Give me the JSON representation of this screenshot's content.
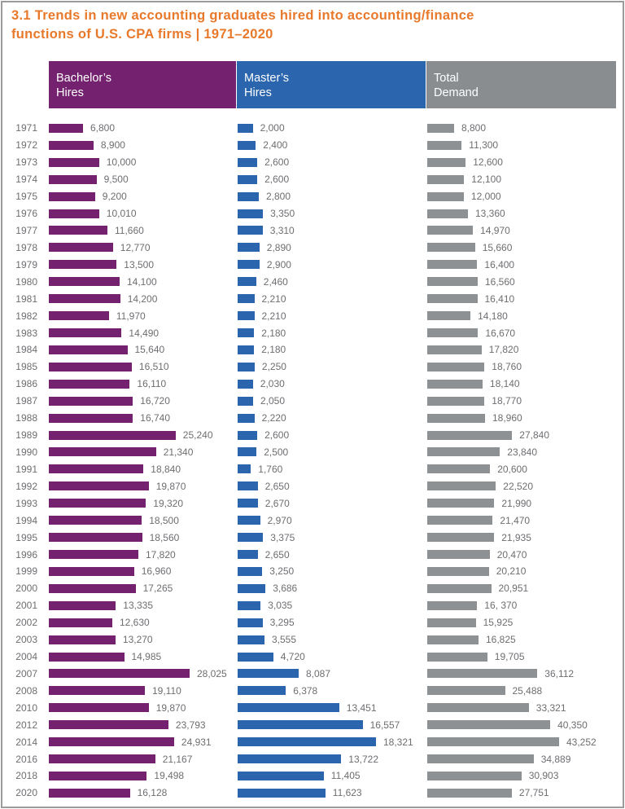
{
  "title": {
    "line1": "3.1 Trends in new accounting graduates hired into accounting/finance",
    "line2": "functions of U.S. CPA firms | 1971–2020"
  },
  "colors": {
    "title_orange": "#e8792b",
    "bachelor_purple": "#74216f",
    "master_blue": "#2a65ae",
    "header_gray": "#8a8d90",
    "bar_gray": "#8e9194",
    "text_gray": "#6d6e71",
    "page_border": "#9b9b9b"
  },
  "columns": [
    {
      "id": "bachelors",
      "label_line1": "Bachelor’s",
      "label_line2": "Hires",
      "color": "#74216f"
    },
    {
      "id": "masters",
      "label_line1": "Master’s",
      "label_line2": "Hires",
      "color": "#2a65ae"
    },
    {
      "id": "total",
      "label_line1": "Total",
      "label_line2": "Demand",
      "color": "#8e9194"
    }
  ],
  "chart_data": {
    "type": "bar",
    "orientation": "horizontal",
    "title": "3.1 Trends in new accounting graduates hired into accounting/finance functions of U.S. CPA firms | 1971–2020",
    "legend_position": "top",
    "grid": false,
    "categories": [
      "1971",
      "1972",
      "1973",
      "1974",
      "1975",
      "1976",
      "1977",
      "1978",
      "1979",
      "1980",
      "1981",
      "1982",
      "1983",
      "1984",
      "1985",
      "1986",
      "1987",
      "1988",
      "1989",
      "1990",
      "1991",
      "1992",
      "1993",
      "1994",
      "1995",
      "1996",
      "1999",
      "2000",
      "2001",
      "2002",
      "2003",
      "2004",
      "2007",
      "2008",
      "2010",
      "2012",
      "2014",
      "2016",
      "2018",
      "2020"
    ],
    "series": [
      {
        "name": "Bachelor's Hires",
        "color": "#74216f",
        "values": [
          6800,
          8900,
          10000,
          9500,
          9200,
          10010,
          11660,
          12770,
          13500,
          14100,
          14200,
          11970,
          14490,
          15640,
          16510,
          16110,
          16720,
          16740,
          25240,
          21340,
          18840,
          19870,
          19320,
          18500,
          18560,
          17820,
          16960,
          17265,
          13335,
          12630,
          13270,
          14985,
          28025,
          19110,
          19870,
          23793,
          24931,
          21167,
          19498,
          16128
        ],
        "labels": [
          "6,800",
          "8,900",
          "10,000",
          "9,500",
          "9,200",
          "10,010",
          "11,660",
          "12,770",
          "13,500",
          "14,100",
          "14,200",
          "11,970",
          "14,490",
          "15,640",
          "16,510",
          "16,110",
          "16,720",
          "16,740",
          "25,240",
          "21,340",
          "18,840",
          "19,870",
          "19,320",
          "18,500",
          "18,560",
          "17,820",
          "16,960",
          "17,265",
          "13,335",
          "12,630",
          "13,270",
          "14,985",
          "28,025",
          "19,110",
          "19,870",
          "23,793",
          "24,931",
          "21,167",
          "19,498",
          "16,128"
        ]
      },
      {
        "name": "Master's Hires",
        "color": "#2a65ae",
        "values": [
          2000,
          2400,
          2600,
          2600,
          2800,
          3350,
          3310,
          2890,
          2900,
          2460,
          2210,
          2210,
          2180,
          2180,
          2250,
          2030,
          2050,
          2220,
          2600,
          2500,
          1760,
          2650,
          2670,
          2970,
          3375,
          2650,
          3250,
          3686,
          3035,
          3295,
          3555,
          4720,
          8087,
          6378,
          13451,
          16557,
          18321,
          13722,
          11405,
          11623
        ],
        "labels": [
          "2,000",
          "2,400",
          "2,600",
          "2,600",
          "2,800",
          "3,350",
          "3,310",
          "2,890",
          "2,900",
          "2,460",
          "2,210",
          "2,210",
          "2,180",
          "2,180",
          "2,250",
          "2,030",
          "2,050",
          "2,220",
          "2,600",
          "2,500",
          "1,760",
          "2,650",
          "2,670",
          "2,970",
          "3,375",
          "2,650",
          "3,250",
          "3,686",
          "3,035",
          "3,295",
          "3,555",
          "4,720",
          "8,087",
          "6,378",
          "13,451",
          "16,557",
          "18,321",
          "13,722",
          "11,405",
          "11,623"
        ]
      },
      {
        "name": "Total Demand",
        "color": "#8e9194",
        "values": [
          8800,
          11300,
          12600,
          12100,
          12000,
          13360,
          14970,
          15660,
          16400,
          16560,
          16410,
          14180,
          16670,
          17820,
          18760,
          18140,
          18770,
          18960,
          27840,
          23840,
          20600,
          22520,
          21990,
          21470,
          21935,
          20470,
          20210,
          20951,
          16370,
          15925,
          16825,
          19705,
          36112,
          25488,
          33321,
          40350,
          43252,
          34889,
          30903,
          27751
        ],
        "labels": [
          "8,800",
          "11,300",
          "12,600",
          "12,100",
          "12,000",
          "13,360",
          "14,970",
          "15,660",
          "16,400",
          "16,560",
          "16,410",
          "14,180",
          "16,670",
          "17,820",
          "18,760",
          "18,140",
          "18,770",
          "18,960",
          "27,840",
          "23,840",
          "20,600",
          "22,520",
          "21,990",
          "21,470",
          "21,935",
          "20,470",
          "20,210",
          "20,951",
          "16, 370",
          "15,925",
          "16,825",
          "19,705",
          "36,112",
          "25,488",
          "33,321",
          "40,350",
          "43,252",
          "34,889",
          "30,903",
          "27,751"
        ]
      }
    ]
  }
}
